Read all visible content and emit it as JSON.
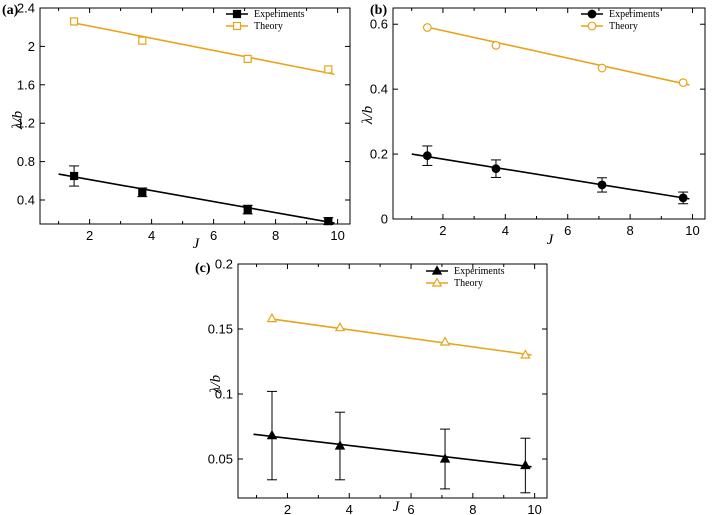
{
  "chart_data": [
    {
      "type": "scatter",
      "panel": "(a)",
      "ylabel": "λ/b",
      "xlabel": "J",
      "xlim": [
        0.4,
        10.4
      ],
      "ylim": [
        0.15,
        2.4
      ],
      "xticks": [
        2,
        4,
        6,
        8,
        10
      ],
      "yticks": [
        0.4,
        0.8,
        1.2,
        1.6,
        2,
        2.4
      ],
      "ytick_labels": [
        "0.4",
        "0.8",
        "1.2",
        "1.6",
        "2",
        "2.4"
      ],
      "legend_position": "top-right",
      "legend": [
        "Experiments",
        "Theory"
      ],
      "series": [
        {
          "name": "Experiments",
          "marker": "square-filled",
          "color": "#000000",
          "x": [
            1.5,
            3.7,
            7.1,
            9.7
          ],
          "y": [
            0.65,
            0.48,
            0.3,
            0.18
          ],
          "err": [
            0.105,
            0.045,
            0.045,
            0.035
          ],
          "fit": [
            [
              1.0,
              0.67
            ],
            [
              9.9,
              0.16
            ]
          ]
        },
        {
          "name": "Theory",
          "marker": "square-open",
          "color": "#E8A317",
          "x": [
            1.5,
            3.7,
            7.1,
            9.7
          ],
          "y": [
            2.26,
            2.06,
            1.87,
            1.76
          ],
          "fit": [
            [
              1.4,
              2.25
            ],
            [
              9.9,
              1.71
            ]
          ]
        }
      ]
    },
    {
      "type": "scatter",
      "panel": "(b)",
      "ylabel": "λ/b",
      "xlabel": "J",
      "xlim": [
        0.4,
        10.4
      ],
      "ylim": [
        0,
        0.65
      ],
      "xticks": [
        2,
        4,
        6,
        8,
        10
      ],
      "yticks": [
        0,
        0.2,
        0.4,
        0.6
      ],
      "ytick_labels": [
        "0",
        "0.2",
        "0.4",
        "0.6"
      ],
      "legend_position": "top-right",
      "legend": [
        "Experiments",
        "Theory"
      ],
      "series": [
        {
          "name": "Experiments",
          "marker": "circle-filled",
          "color": "#000000",
          "x": [
            1.5,
            3.7,
            7.1,
            9.7
          ],
          "y": [
            0.195,
            0.155,
            0.105,
            0.065
          ],
          "err": [
            0.03,
            0.027,
            0.022,
            0.018
          ],
          "fit": [
            [
              1.0,
              0.2
            ],
            [
              9.9,
              0.062
            ]
          ]
        },
        {
          "name": "Theory",
          "marker": "circle-open",
          "color": "#E8A317",
          "x": [
            1.5,
            3.7,
            7.1,
            9.7
          ],
          "y": [
            0.59,
            0.535,
            0.465,
            0.42
          ],
          "fit": [
            [
              1.4,
              0.593
            ],
            [
              9.9,
              0.413
            ]
          ]
        }
      ]
    },
    {
      "type": "scatter",
      "panel": "(c)",
      "ylabel": "λ/b",
      "xlabel": "J",
      "xlim": [
        0.4,
        10.4
      ],
      "ylim": [
        0.02,
        0.2
      ],
      "xticks": [
        2,
        4,
        6,
        8,
        10
      ],
      "yticks": [
        0.05,
        0.1,
        0.15,
        0.2
      ],
      "ytick_labels": [
        "0.05",
        "0.1",
        "0.15",
        "0.2"
      ],
      "legend_position": "top-right",
      "legend": [
        "Experiments",
        "Theory"
      ],
      "series": [
        {
          "name": "Experiments",
          "marker": "triangle-filled",
          "color": "#000000",
          "x": [
            1.5,
            3.7,
            7.1,
            9.7
          ],
          "y": [
            0.068,
            0.06,
            0.05,
            0.045
          ],
          "err": [
            0.034,
            0.026,
            0.023,
            0.021
          ],
          "fit": [
            [
              0.9,
              0.069
            ],
            [
              9.9,
              0.044
            ]
          ]
        },
        {
          "name": "Theory",
          "marker": "triangle-open",
          "color": "#E8A317",
          "x": [
            1.5,
            3.7,
            7.1,
            9.7
          ],
          "y": [
            0.158,
            0.151,
            0.14,
            0.13
          ],
          "fit": [
            [
              1.4,
              0.158
            ],
            [
              9.9,
              0.13
            ]
          ]
        }
      ]
    }
  ]
}
